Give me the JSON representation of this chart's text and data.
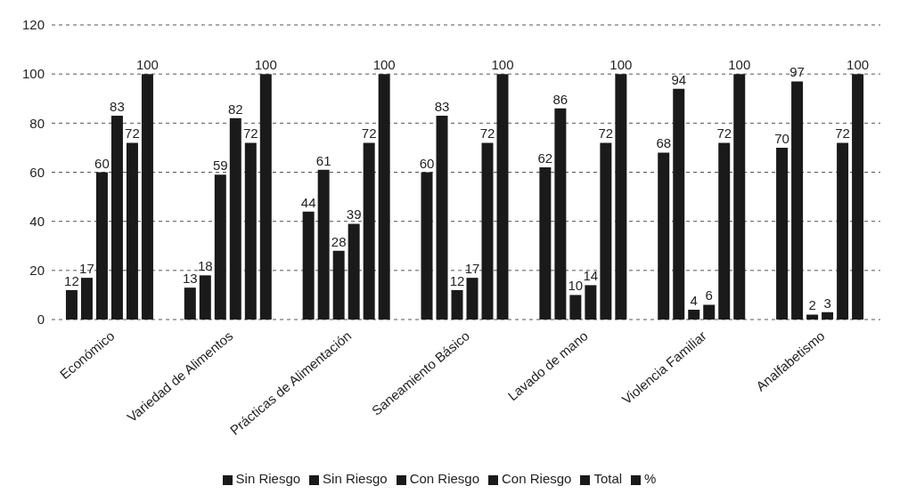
{
  "chart_data": {
    "type": "bar",
    "categories": [
      "Económico",
      "Variedad de Alimentos",
      "Prácticas de Alimentación",
      "Saneamiento Básico",
      "Lavado de mano",
      "Violencia Familiar",
      "Analfabetismo"
    ],
    "series": [
      {
        "name": "Sin Riesgo",
        "color": "#1a1a1a",
        "values": [
          12,
          13,
          44,
          60,
          62,
          68,
          70
        ]
      },
      {
        "name": "Sin Riesgo",
        "color": "#1a1a1a",
        "values": [
          17,
          18,
          61,
          83,
          86,
          94,
          97
        ]
      },
      {
        "name": "Con Riesgo",
        "color": "#1a1a1a",
        "values": [
          60,
          59,
          28,
          12,
          10,
          4,
          2
        ]
      },
      {
        "name": "Con Riesgo",
        "color": "#1a1a1a",
        "values": [
          83,
          82,
          39,
          17,
          14,
          6,
          3
        ]
      },
      {
        "name": "Total",
        "color": "#1a1a1a",
        "values": [
          72,
          72,
          72,
          72,
          72,
          72,
          72
        ]
      },
      {
        "name": "%",
        "color": "#1a1a1a",
        "values": [
          100,
          100,
          100,
          100,
          100,
          100,
          100
        ]
      }
    ],
    "ylim": [
      0,
      120
    ],
    "yticks": [
      0,
      20,
      40,
      60,
      80,
      100,
      120
    ],
    "grid": "y",
    "legend": "bottom",
    "data_labels": true
  }
}
